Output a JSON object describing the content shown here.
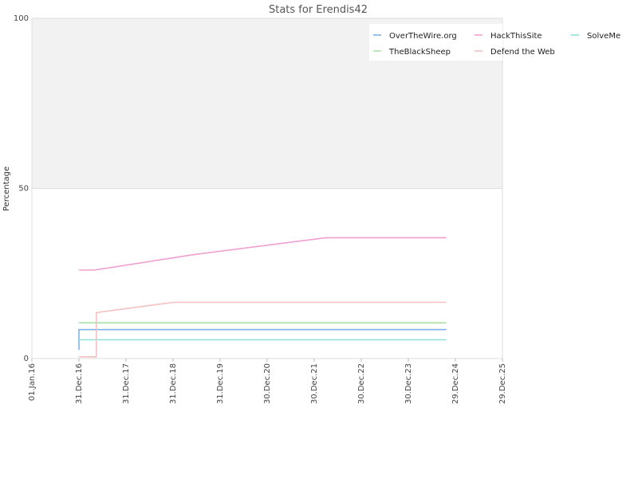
{
  "chart_data": {
    "type": "line",
    "title": "Stats for Erendis42",
    "ylabel": "Percentage",
    "xlabel": "",
    "ylim": [
      0,
      100
    ],
    "yticks": [
      "0",
      "50",
      "100"
    ],
    "xlim": [
      "2016-01-01",
      "2025-12-29"
    ],
    "xticks": [
      "01.Jan.16",
      "31.Dec.16",
      "31.Dec.17",
      "31.Dec.18",
      "31.Dec.19",
      "30.Dec.20",
      "30.Dec.21",
      "30.Dec.22",
      "30.Dec.23",
      "29.Dec.24",
      "29.Dec.25"
    ],
    "shaded_band": [
      50,
      100
    ],
    "legend_position": "top-right",
    "series": [
      {
        "name": "OverTheWire.org",
        "color": "#7fb3e6",
        "points": [
          [
            "2016-12-31",
            2.5
          ],
          [
            "2016-12-31",
            8.5
          ],
          [
            "2024-10-20",
            8.5
          ]
        ]
      },
      {
        "name": "HackThisSite",
        "color": "#f0a0d0",
        "points": [
          [
            "2016-12-31",
            26
          ],
          [
            "2017-05-01",
            26
          ],
          [
            "2019-06-01",
            30.5
          ],
          [
            "2022-04-01",
            35.5
          ],
          [
            "2024-10-20",
            35.5
          ]
        ]
      },
      {
        "name": "SolveMe",
        "color": "#8fe0d8",
        "points": [
          [
            "2016-12-31",
            5.5
          ],
          [
            "2024-10-20",
            5.5
          ]
        ]
      },
      {
        "name": "TheBlackSheep",
        "color": "#a8e0a8",
        "points": [
          [
            "2016-12-31",
            10.5
          ],
          [
            "2024-10-20",
            10.5
          ]
        ]
      },
      {
        "name": "Defend the Web",
        "color": "#f4c0c0",
        "points": [
          [
            "2016-12-31",
            0.5
          ],
          [
            "2017-05-15",
            0.5
          ],
          [
            "2017-05-15",
            13.5
          ],
          [
            "2019-01-01",
            16.5
          ],
          [
            "2024-10-20",
            16.5
          ]
        ]
      }
    ]
  }
}
